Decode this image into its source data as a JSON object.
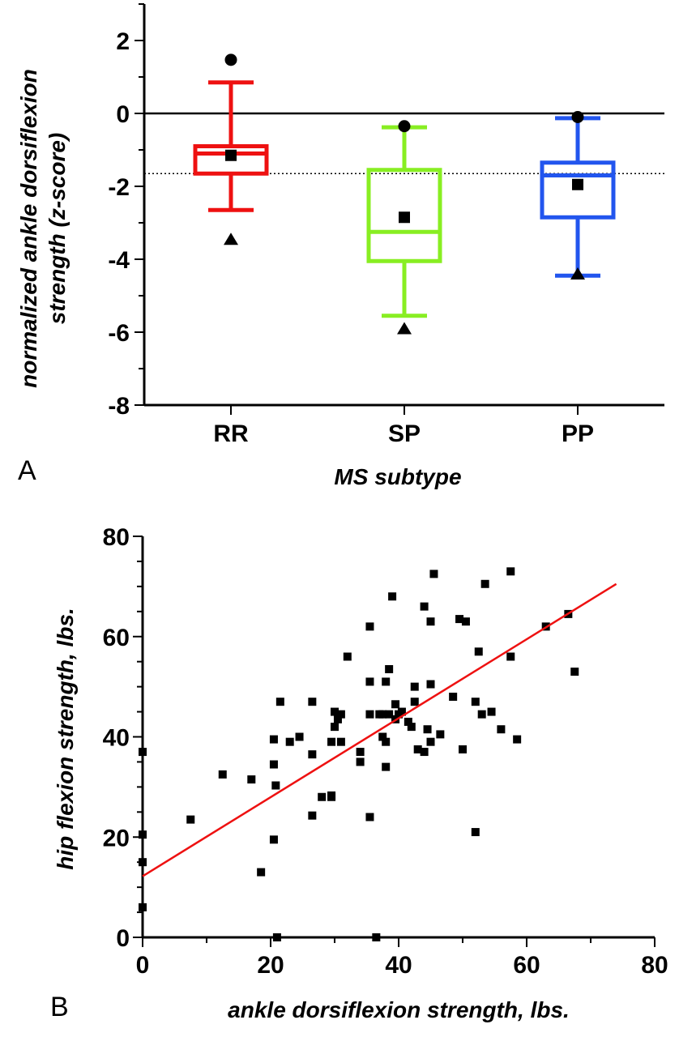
{
  "chart_data": [
    {
      "panel_label": "A",
      "type": "box",
      "xlabel": "MS subtype",
      "ylabel_lines": [
        "normalized ankle dorsiflexion",
        "strength (z-score)"
      ],
      "ylim": [
        -8,
        3
      ],
      "yticks": [
        2,
        0,
        -2,
        -4,
        -6,
        -8
      ],
      "ytick_labels": [
        "2",
        "0",
        "-2",
        "-4",
        "-6",
        "-8"
      ],
      "reference_lines": [
        {
          "y": 0,
          "style": "solid"
        },
        {
          "y": -1.65,
          "style": "dotted"
        }
      ],
      "categories": [
        "RR",
        "SP",
        "PP"
      ],
      "series": [
        {
          "category": "RR",
          "color": "#ee1111",
          "whisker_low": -2.65,
          "q1": -1.65,
          "median": -1.1,
          "q3": -0.9,
          "whisker_high": 0.85,
          "max_marker": 1.47,
          "mean_marker": -1.15,
          "min_marker": -3.45
        },
        {
          "category": "SP",
          "color": "#88ee22",
          "whisker_low": -5.55,
          "q1": -4.05,
          "median": -3.25,
          "q3": -1.55,
          "whisker_high": -0.38,
          "max_marker": -0.35,
          "mean_marker": -2.85,
          "min_marker": -5.9
        },
        {
          "category": "PP",
          "color": "#2255ee",
          "whisker_low": -4.45,
          "q1": -2.85,
          "median": -1.7,
          "q3": -1.35,
          "whisker_high": -0.13,
          "max_marker": -0.1,
          "mean_marker": -1.95,
          "min_marker": -4.4
        }
      ]
    },
    {
      "panel_label": "B",
      "type": "scatter",
      "xlabel": "ankle dorsiflexion strength, lbs.",
      "ylabel": "hip flexion strength, lbs.",
      "xlim": [
        0,
        80
      ],
      "ylim": [
        0,
        80
      ],
      "xticks": [
        0,
        20,
        40,
        60,
        80
      ],
      "yticks": [
        0,
        20,
        40,
        60,
        80
      ],
      "fit_line": {
        "color": "#ee1111",
        "x": [
          0,
          74
        ],
        "y": [
          12.2,
          70.5
        ]
      },
      "points": [
        [
          0,
          37
        ],
        [
          0,
          20.5
        ],
        [
          0,
          15
        ],
        [
          0,
          6
        ],
        [
          7.5,
          23.5
        ],
        [
          12.5,
          32.5
        ],
        [
          17,
          31.5
        ],
        [
          18.5,
          13
        ],
        [
          20.5,
          39.5
        ],
        [
          20.5,
          34.5
        ],
        [
          20.5,
          19.5
        ],
        [
          20.8,
          30.3
        ],
        [
          21,
          0
        ],
        [
          21.5,
          47
        ],
        [
          23,
          39
        ],
        [
          24.5,
          40
        ],
        [
          26.5,
          47
        ],
        [
          26.5,
          36.5
        ],
        [
          26.5,
          24.3
        ],
        [
          28,
          28
        ],
        [
          29.5,
          28.3
        ],
        [
          29.5,
          28
        ],
        [
          29.5,
          39
        ],
        [
          30,
          45
        ],
        [
          30,
          42
        ],
        [
          30.5,
          43.5
        ],
        [
          31,
          44.5
        ],
        [
          31,
          39
        ],
        [
          32,
          56
        ],
        [
          34,
          37
        ],
        [
          34,
          35
        ],
        [
          35.5,
          24
        ],
        [
          35.5,
          62
        ],
        [
          35.5,
          51
        ],
        [
          35.5,
          44.5
        ],
        [
          36.5,
          0
        ],
        [
          37,
          44.5
        ],
        [
          37.5,
          40
        ],
        [
          37.5,
          44.5
        ],
        [
          38,
          39
        ],
        [
          38,
          34
        ],
        [
          38,
          51
        ],
        [
          38.5,
          53.5
        ],
        [
          38.5,
          44.5
        ],
        [
          39,
          68
        ],
        [
          39.5,
          46.5
        ],
        [
          39.5,
          43.5
        ],
        [
          40,
          44.5
        ],
        [
          40.5,
          45
        ],
        [
          41.5,
          43
        ],
        [
          42,
          42
        ],
        [
          42.5,
          47
        ],
        [
          42.5,
          50
        ],
        [
          43,
          37.5
        ],
        [
          44,
          66
        ],
        [
          44,
          37
        ],
        [
          44.5,
          41.5
        ],
        [
          45,
          63
        ],
        [
          45,
          50.5
        ],
        [
          45,
          39
        ],
        [
          45.5,
          72.5
        ],
        [
          46.5,
          40.5
        ],
        [
          48.5,
          48
        ],
        [
          49.5,
          63.5
        ],
        [
          50,
          37.5
        ],
        [
          50.5,
          63
        ],
        [
          52,
          47
        ],
        [
          52,
          21
        ],
        [
          52.5,
          57
        ],
        [
          53,
          44.5
        ],
        [
          53.5,
          70.5
        ],
        [
          54.5,
          45
        ],
        [
          56,
          41.5
        ],
        [
          57.5,
          73
        ],
        [
          57.5,
          56
        ],
        [
          58.5,
          39.5
        ],
        [
          63,
          62
        ],
        [
          66.5,
          64.5
        ],
        [
          67.5,
          53
        ]
      ]
    }
  ]
}
